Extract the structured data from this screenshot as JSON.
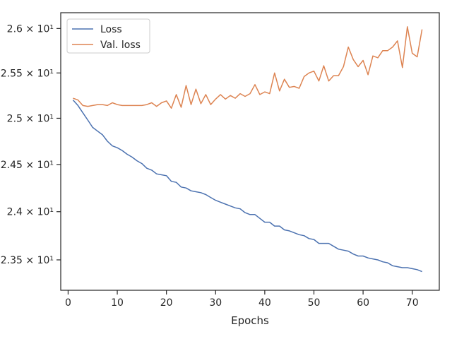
{
  "chart_data": {
    "type": "line",
    "xlabel": "Epochs",
    "ylabel": "",
    "title": "",
    "xlim": [
      -1.5,
      75.5
    ],
    "ylim": [
      23.19,
      26.18
    ],
    "x_ticks": [
      0,
      10,
      20,
      30,
      40,
      50,
      60,
      70
    ],
    "x_tick_labels": [
      "0",
      "10",
      "20",
      "30",
      "40",
      "50",
      "60",
      "70"
    ],
    "y_ticks": [
      23.5,
      24.0,
      24.5,
      25.0,
      25.5,
      26.0
    ],
    "y_tick_labels": [
      "2.35 × 10¹",
      "2.4 × 10¹",
      "2.45 × 10¹",
      "2.5 × 10¹",
      "2.55 × 10¹",
      "2.6 × 10¹"
    ],
    "y_scale": "log",
    "grid": false,
    "legend_position": "top-left",
    "x": [
      1,
      2,
      3,
      4,
      5,
      6,
      7,
      8,
      9,
      10,
      11,
      12,
      13,
      14,
      15,
      16,
      17,
      18,
      19,
      20,
      21,
      22,
      23,
      24,
      25,
      26,
      27,
      28,
      29,
      30,
      31,
      32,
      33,
      34,
      35,
      36,
      37,
      38,
      39,
      40,
      41,
      42,
      43,
      44,
      45,
      46,
      47,
      48,
      49,
      50,
      51,
      52,
      53,
      54,
      55,
      56,
      57,
      58,
      59,
      60,
      61,
      62,
      63,
      64,
      65,
      66,
      67,
      68,
      69,
      70,
      71,
      72
    ],
    "series": [
      {
        "name": "Loss",
        "color": "#4c72b0",
        "values": [
          25.2,
          25.14,
          25.06,
          24.98,
          24.9,
          24.86,
          24.82,
          24.75,
          24.7,
          24.68,
          24.65,
          24.61,
          24.58,
          24.54,
          24.51,
          24.46,
          24.44,
          24.4,
          24.39,
          24.38,
          24.32,
          24.31,
          24.26,
          24.25,
          24.22,
          24.21,
          24.2,
          24.18,
          24.15,
          24.12,
          24.1,
          24.08,
          24.06,
          24.04,
          24.03,
          23.99,
          23.97,
          23.97,
          23.93,
          23.89,
          23.89,
          23.85,
          23.85,
          23.81,
          23.8,
          23.78,
          23.76,
          23.75,
          23.72,
          23.71,
          23.67,
          23.67,
          23.67,
          23.64,
          23.61,
          23.6,
          23.59,
          23.56,
          23.54,
          23.54,
          23.52,
          23.51,
          23.5,
          23.48,
          23.47,
          23.44,
          23.43,
          23.42,
          23.42,
          23.41,
          23.4,
          23.38
        ]
      },
      {
        "name": "Val. loss",
        "color": "#dd8452",
        "values": [
          25.22,
          25.2,
          25.14,
          25.13,
          25.14,
          25.15,
          25.15,
          25.14,
          25.17,
          25.15,
          25.14,
          25.14,
          25.14,
          25.14,
          25.14,
          25.15,
          25.17,
          25.13,
          25.17,
          25.19,
          25.11,
          25.26,
          25.12,
          25.36,
          25.15,
          25.32,
          25.16,
          25.26,
          25.15,
          25.21,
          25.26,
          25.21,
          25.25,
          25.22,
          25.27,
          25.24,
          25.27,
          25.37,
          25.26,
          25.29,
          25.27,
          25.5,
          25.3,
          25.43,
          25.34,
          25.35,
          25.33,
          25.46,
          25.5,
          25.52,
          25.41,
          25.58,
          25.41,
          25.47,
          25.47,
          25.57,
          25.79,
          25.65,
          25.57,
          25.64,
          25.48,
          25.69,
          25.67,
          25.75,
          25.75,
          25.79,
          25.86,
          25.56,
          26.02,
          25.72,
          25.68,
          25.99
        ]
      }
    ]
  }
}
